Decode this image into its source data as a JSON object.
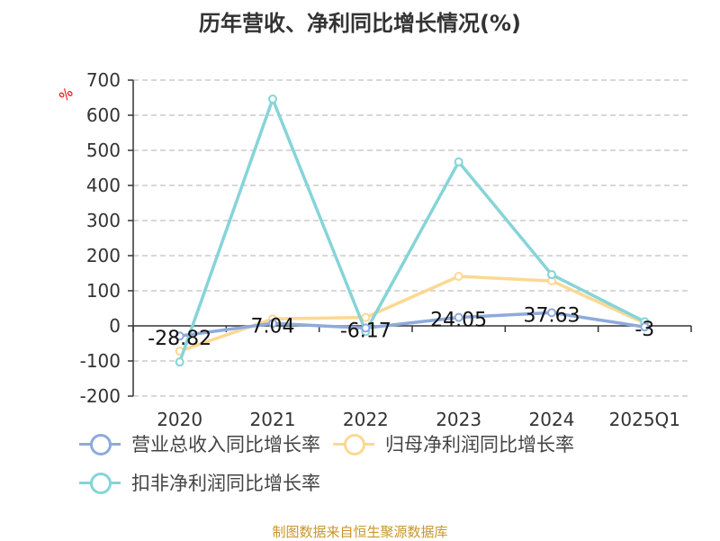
{
  "title": "历年营收、净利同比增长情况(%)",
  "source": "制图数据来自恒生聚源数据库",
  "chart_data": {
    "type": "line",
    "title": "历年营收、净利同比增长情况(%)",
    "ylabel": "%",
    "ylim": [
      -200,
      700
    ],
    "yticks": [
      -200,
      -100,
      0,
      100,
      200,
      300,
      400,
      500,
      600,
      700
    ],
    "grid": true,
    "legend_position": "bottom",
    "categories": [
      "2020",
      "2021",
      "2022",
      "2023",
      "2024",
      "2025Q1"
    ],
    "series": [
      {
        "name": "营业总收入同比增长率",
        "color": "#8eaadc",
        "values": [
          -28.82,
          7.04,
          -6.17,
          24.05,
          37.63,
          -3
        ],
        "labels": [
          "-28.82",
          "7.04",
          "-6.17",
          "24.05",
          "37.63",
          "-3"
        ]
      },
      {
        "name": "归母净利润同比增长率",
        "color": "#fdd893",
        "values": [
          -72,
          20,
          24,
          141,
          128,
          8
        ]
      },
      {
        "name": "扣非净利润同比增长率",
        "color": "#86d4d8",
        "values": [
          -103,
          646,
          -16,
          467,
          146,
          12
        ]
      }
    ]
  }
}
